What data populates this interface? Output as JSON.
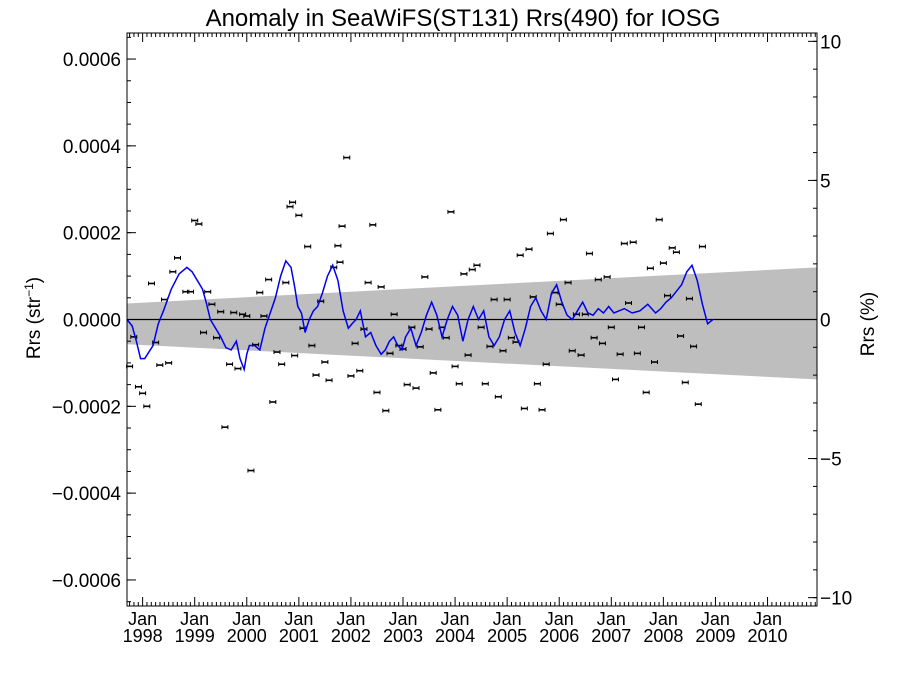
{
  "chart_data": {
    "type": "scatter",
    "title": "Anomaly in SeaWiFS(ST131) Rrs(490) for IOSG",
    "ylabel": {
      "prefix": "Rrs (str",
      "sup": "−1",
      "suffix": ")"
    },
    "y2label": "Rrs (%)",
    "xlim": [
      1997.7,
      2010.95
    ],
    "ylim": [
      -0.00066,
      0.00066
    ],
    "y2lim": [
      -10.3,
      10.3
    ],
    "y_ticks": [
      {
        "v": 0.0006,
        "label": "0.0006"
      },
      {
        "v": 0.0004,
        "label": "0.0004"
      },
      {
        "v": 0.0002,
        "label": "0.0002"
      },
      {
        "v": 0.0,
        "label": "0.0000"
      },
      {
        "v": -0.0002,
        "label": "−0.0002"
      },
      {
        "v": -0.0004,
        "label": "−0.0004"
      },
      {
        "v": -0.0006,
        "label": "−0.0006"
      }
    ],
    "y2_ticks": [
      {
        "v": 10,
        "label": "10"
      },
      {
        "v": 5,
        "label": "5"
      },
      {
        "v": 0,
        "label": "0"
      },
      {
        "v": -5,
        "label": "−5"
      },
      {
        "v": -10,
        "label": "−10"
      }
    ],
    "x_ticks": [
      {
        "v": 1998,
        "month": "Jan",
        "year": "1998"
      },
      {
        "v": 1999,
        "month": "Jan",
        "year": "1999"
      },
      {
        "v": 2000,
        "month": "Jan",
        "year": "2000"
      },
      {
        "v": 2001,
        "month": "Jan",
        "year": "2001"
      },
      {
        "v": 2002,
        "month": "Jan",
        "year": "2002"
      },
      {
        "v": 2003,
        "month": "Jan",
        "year": "2003"
      },
      {
        "v": 2004,
        "month": "Jan",
        "year": "2004"
      },
      {
        "v": 2005,
        "month": "Jan",
        "year": "2005"
      },
      {
        "v": 2006,
        "month": "Jan",
        "year": "2006"
      },
      {
        "v": 2007,
        "month": "Jan",
        "year": "2007"
      },
      {
        "v": 2008,
        "month": "Jan",
        "year": "2008"
      },
      {
        "v": 2009,
        "month": "Jan",
        "year": "2009"
      },
      {
        "v": 2010,
        "month": "Jan",
        "year": "2010"
      }
    ],
    "colors": {
      "line": "#0000ee",
      "band": "#bebebe",
      "points": "#000000",
      "zero_line": "#000000"
    },
    "band": {
      "x0": 1997.7,
      "x1": 2010.95,
      "upper0": 3.7e-05,
      "upper1": 0.00012,
      "lower0": -5.7e-05,
      "lower1": -0.000138
    },
    "points": [
      {
        "x": 1997.75,
        "y": -0.000108
      },
      {
        "x": 1997.83,
        "y": -4e-05
      },
      {
        "x": 1997.92,
        "y": -0.000155
      },
      {
        "x": 1998.0,
        "y": -0.00017
      },
      {
        "x": 1998.08,
        "y": -0.0002
      },
      {
        "x": 1998.17,
        "y": 8.3e-05
      },
      {
        "x": 1998.25,
        "y": -5.3e-05
      },
      {
        "x": 1998.33,
        "y": -0.000105
      },
      {
        "x": 1998.42,
        "y": 4.6e-05
      },
      {
        "x": 1998.5,
        "y": -0.0001
      },
      {
        "x": 1998.58,
        "y": 0.00011
      },
      {
        "x": 1998.67,
        "y": 0.000142
      },
      {
        "x": 1998.83,
        "y": 6.4e-05
      },
      {
        "x": 1998.92,
        "y": 6.4e-05
      },
      {
        "x": 1999.0,
        "y": 0.000228
      },
      {
        "x": 1999.08,
        "y": 0.00022
      },
      {
        "x": 1999.17,
        "y": -3e-05
      },
      {
        "x": 1999.25,
        "y": 6.4e-05
      },
      {
        "x": 1999.33,
        "y": 3.5e-05
      },
      {
        "x": 1999.42,
        "y": -4.2e-05
      },
      {
        "x": 1999.5,
        "y": 1.8e-05
      },
      {
        "x": 1999.58,
        "y": -0.000248
      },
      {
        "x": 1999.67,
        "y": -0.000103
      },
      {
        "x": 1999.75,
        "y": 1.6e-05
      },
      {
        "x": 1999.83,
        "y": -0.000113
      },
      {
        "x": 1999.92,
        "y": 1.2e-05
      },
      {
        "x": 2000.0,
        "y": 8e-06
      },
      {
        "x": 2000.08,
        "y": -0.000348
      },
      {
        "x": 2000.17,
        "y": -5.8e-05
      },
      {
        "x": 2000.25,
        "y": 6.2e-05
      },
      {
        "x": 2000.33,
        "y": 8e-06
      },
      {
        "x": 2000.42,
        "y": 9.2e-05
      },
      {
        "x": 2000.5,
        "y": -0.00019
      },
      {
        "x": 2000.58,
        "y": -7.5e-05
      },
      {
        "x": 2000.67,
        "y": -0.000103
      },
      {
        "x": 2000.75,
        "y": 8.5e-05
      },
      {
        "x": 2000.83,
        "y": 0.00026
      },
      {
        "x": 2000.88,
        "y": 0.00027
      },
      {
        "x": 2000.92,
        "y": -8.3e-05
      },
      {
        "x": 2001.0,
        "y": 0.00024
      },
      {
        "x": 2001.08,
        "y": -2e-05
      },
      {
        "x": 2001.17,
        "y": 0.000168
      },
      {
        "x": 2001.25,
        "y": -6e-05
      },
      {
        "x": 2001.33,
        "y": -0.000128
      },
      {
        "x": 2001.42,
        "y": 4.2e-05
      },
      {
        "x": 2001.5,
        "y": -9.8e-05
      },
      {
        "x": 2001.58,
        "y": -0.00014
      },
      {
        "x": 2001.67,
        "y": 0.00012
      },
      {
        "x": 2001.75,
        "y": 0.00017
      },
      {
        "x": 2001.79,
        "y": 0.000132
      },
      {
        "x": 2001.83,
        "y": 0.000215
      },
      {
        "x": 2001.92,
        "y": 0.000373
      },
      {
        "x": 2002.0,
        "y": -0.00013
      },
      {
        "x": 2002.08,
        "y": -5.5e-05
      },
      {
        "x": 2002.17,
        "y": -0.000118
      },
      {
        "x": 2002.25,
        "y": -2.2e-05
      },
      {
        "x": 2002.33,
        "y": 8.5e-05
      },
      {
        "x": 2002.42,
        "y": 0.000218
      },
      {
        "x": 2002.5,
        "y": -0.000168
      },
      {
        "x": 2002.58,
        "y": 7.5e-05
      },
      {
        "x": 2002.67,
        "y": -0.00021
      },
      {
        "x": 2002.75,
        "y": -7.8e-05
      },
      {
        "x": 2002.83,
        "y": 1.2e-05
      },
      {
        "x": 2002.92,
        "y": -6e-05
      },
      {
        "x": 2003.0,
        "y": -6.8e-05
      },
      {
        "x": 2003.08,
        "y": -0.00015
      },
      {
        "x": 2003.17,
        "y": -1.8e-05
      },
      {
        "x": 2003.25,
        "y": -0.000158
      },
      {
        "x": 2003.33,
        "y": -6.3e-05
      },
      {
        "x": 2003.42,
        "y": 9.8e-05
      },
      {
        "x": 2003.5,
        "y": -2.2e-05
      },
      {
        "x": 2003.58,
        "y": -0.000123
      },
      {
        "x": 2003.67,
        "y": -0.000208
      },
      {
        "x": 2003.75,
        "y": -1.8e-05
      },
      {
        "x": 2003.83,
        "y": -4.2e-05
      },
      {
        "x": 2003.92,
        "y": 0.000248
      },
      {
        "x": 2004.0,
        "y": -0.000108
      },
      {
        "x": 2004.08,
        "y": -0.000148
      },
      {
        "x": 2004.17,
        "y": 0.000105
      },
      {
        "x": 2004.25,
        "y": -8.2e-05
      },
      {
        "x": 2004.33,
        "y": 0.000115
      },
      {
        "x": 2004.42,
        "y": 0.000125
      },
      {
        "x": 2004.5,
        "y": -1.8e-05
      },
      {
        "x": 2004.58,
        "y": -0.000148
      },
      {
        "x": 2004.67,
        "y": -6.2e-05
      },
      {
        "x": 2004.75,
        "y": 4.6e-05
      },
      {
        "x": 2004.83,
        "y": -0.000178
      },
      {
        "x": 2004.92,
        "y": -7.2e-05
      },
      {
        "x": 2005.0,
        "y": 4.6e-05
      },
      {
        "x": 2005.08,
        "y": -4.2e-05
      },
      {
        "x": 2005.17,
        "y": -5.2e-05
      },
      {
        "x": 2005.25,
        "y": 0.000148
      },
      {
        "x": 2005.33,
        "y": -0.000205
      },
      {
        "x": 2005.42,
        "y": 0.000162
      },
      {
        "x": 2005.5,
        "y": 5.2e-05
      },
      {
        "x": 2005.58,
        "y": -0.000148
      },
      {
        "x": 2005.67,
        "y": -0.000208
      },
      {
        "x": 2005.75,
        "y": -0.000103
      },
      {
        "x": 2005.83,
        "y": 0.000198
      },
      {
        "x": 2005.92,
        "y": 6.2e-05
      },
      {
        "x": 2006.0,
        "y": 3.5e-05
      },
      {
        "x": 2006.08,
        "y": 0.00023
      },
      {
        "x": 2006.17,
        "y": 8.5e-05
      },
      {
        "x": 2006.25,
        "y": -7.2e-05
      },
      {
        "x": 2006.33,
        "y": 1.2e-05
      },
      {
        "x": 2006.42,
        "y": -8.2e-05
      },
      {
        "x": 2006.5,
        "y": 1.2e-05
      },
      {
        "x": 2006.58,
        "y": 0.000152
      },
      {
        "x": 2006.67,
        "y": -4.2e-05
      },
      {
        "x": 2006.75,
        "y": 9.2e-05
      },
      {
        "x": 2006.83,
        "y": -5.5e-05
      },
      {
        "x": 2006.92,
        "y": 9.8e-05
      },
      {
        "x": 2007.0,
        "y": -1.8e-05
      },
      {
        "x": 2007.08,
        "y": -0.000138
      },
      {
        "x": 2007.17,
        "y": -8e-05
      },
      {
        "x": 2007.25,
        "y": 0.000175
      },
      {
        "x": 2007.33,
        "y": 3.8e-05
      },
      {
        "x": 2007.42,
        "y": 0.000178
      },
      {
        "x": 2007.5,
        "y": -7.8e-05
      },
      {
        "x": 2007.58,
        "y": -1.8e-05
      },
      {
        "x": 2007.67,
        "y": -0.000168
      },
      {
        "x": 2007.75,
        "y": 0.000118
      },
      {
        "x": 2007.83,
        "y": -9.8e-05
      },
      {
        "x": 2007.92,
        "y": 0.00023
      },
      {
        "x": 2008.0,
        "y": 0.00013
      },
      {
        "x": 2008.08,
        "y": 5.5e-05
      },
      {
        "x": 2008.17,
        "y": 0.000165
      },
      {
        "x": 2008.25,
        "y": 0.000155
      },
      {
        "x": 2008.33,
        "y": -3.8e-05
      },
      {
        "x": 2008.42,
        "y": -0.000145
      },
      {
        "x": 2008.5,
        "y": 4.8e-05
      },
      {
        "x": 2008.58,
        "y": -6.2e-05
      },
      {
        "x": 2008.67,
        "y": -0.000195
      },
      {
        "x": 2008.75,
        "y": 0.000168
      }
    ],
    "series": [
      {
        "x": [
          1997.7,
          1997.8,
          1997.88,
          1997.96,
          1998.04,
          1998.12,
          1998.2,
          1998.3,
          1998.4,
          1998.55,
          1998.7,
          1998.85,
          1998.95,
          1999.05,
          1999.15,
          1999.22,
          1999.3,
          1999.4,
          1999.5,
          1999.6,
          1999.7,
          1999.8,
          1999.87,
          1999.95,
          2000.0,
          2000.05,
          2000.15,
          2000.25,
          2000.35,
          2000.45,
          2000.55,
          2000.65,
          2000.75,
          2000.85,
          2000.92,
          2000.98,
          2001.05,
          2001.12,
          2001.2,
          2001.28,
          2001.36,
          2001.45,
          2001.55,
          2001.65,
          2001.75,
          2001.85,
          2001.95,
          2002.02,
          2002.1,
          2002.18,
          2002.28,
          2002.38,
          2002.48,
          2002.58,
          2002.66,
          2002.74,
          2002.82,
          2002.9,
          2002.98,
          2003.05,
          2003.15,
          2003.25,
          2003.35,
          2003.45,
          2003.55,
          2003.65,
          2003.75,
          2003.85,
          2003.95,
          2004.05,
          2004.15,
          2004.25,
          2004.35,
          2004.45,
          2004.55,
          2004.65,
          2004.75,
          2004.85,
          2004.95,
          2005.05,
          2005.15,
          2005.25,
          2005.35,
          2005.45,
          2005.55,
          2005.65,
          2005.75,
          2005.85,
          2005.95,
          2006.05,
          2006.15,
          2006.25,
          2006.35,
          2006.45,
          2006.55,
          2006.65,
          2006.75,
          2006.85,
          2006.95,
          2007.05,
          2007.15,
          2007.25,
          2007.4,
          2007.55,
          2007.7,
          2007.85,
          2007.95,
          2008.05,
          2008.15,
          2008.25,
          2008.35,
          2008.45,
          2008.55,
          2008.65,
          2008.75,
          2008.85,
          2008.95
        ],
        "values": [
          0.0,
          -1.5e-05,
          -5e-05,
          -9e-05,
          -9e-05,
          -7.5e-05,
          -6e-05,
          -1e-05,
          2e-05,
          7e-05,
          0.000105,
          0.00012,
          0.00011,
          9e-05,
          7e-05,
          4e-05,
          0.0,
          -2e-05,
          -4e-05,
          -6.5e-05,
          -7e-05,
          -5e-05,
          -9e-05,
          -0.000115,
          -8e-05,
          -6e-05,
          -6e-05,
          -7e-05,
          -2e-05,
          1.5e-05,
          5e-05,
          0.0001,
          0.000135,
          0.00012,
          7.5e-05,
          3e-05,
          1.5e-05,
          -3e-05,
          0.0,
          2e-05,
          3e-05,
          6e-05,
          0.0001,
          0.000125,
          9e-05,
          2e-05,
          -2e-05,
          -1e-05,
          0.0,
          2e-05,
          -4e-05,
          -3e-05,
          -6e-05,
          -8e-05,
          -7e-05,
          -5e-05,
          -4e-05,
          -6e-05,
          -7e-05,
          -4e-05,
          -2e-05,
          -6e-05,
          -3e-05,
          1e-05,
          4e-05,
          1e-05,
          -4e-05,
          0.0,
          3e-05,
          1e-05,
          -5e-05,
          0.0,
          3e-05,
          0.0,
          2e-05,
          -4e-05,
          -6e-05,
          -4e-05,
          0.0,
          2e-05,
          -3e-05,
          -6e-05,
          -2e-05,
          3e-05,
          5e-05,
          2e-05,
          0.0,
          6e-05,
          8e-05,
          4e-05,
          1e-05,
          0.0,
          2e-05,
          4e-05,
          1.5e-05,
          1e-05,
          2.5e-05,
          1.5e-05,
          3e-05,
          1.5e-05,
          2e-05,
          2.5e-05,
          1.5e-05,
          2e-05,
          3.5e-05,
          1.5e-05,
          2.5e-05,
          4e-05,
          5e-05,
          6.5e-05,
          8e-05,
          0.00011,
          0.000125,
          9e-05,
          3.5e-05,
          -1e-05,
          0.0
        ]
      }
    ]
  }
}
